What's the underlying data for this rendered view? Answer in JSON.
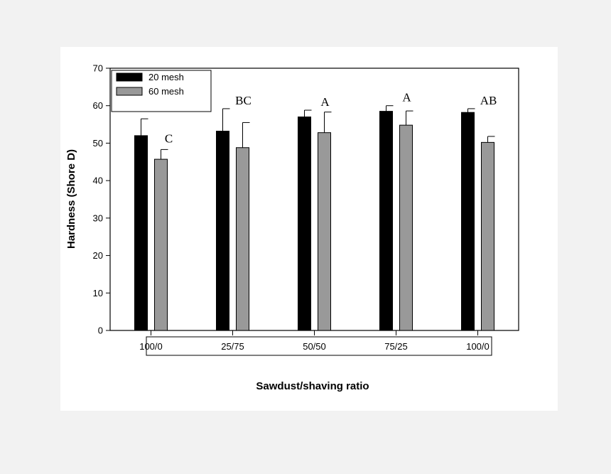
{
  "chart_data": {
    "type": "bar",
    "categories": [
      "100/0",
      "25/75",
      "50/50",
      "75/25",
      "100/0"
    ],
    "series": [
      {
        "name": "20 mesh",
        "color": "#000000",
        "values": [
          52.0,
          53.2,
          57.0,
          58.5,
          58.2
        ],
        "errors": [
          4.5,
          6.0,
          1.8,
          1.5,
          1.0
        ]
      },
      {
        "name": "60 mesh",
        "color": "#999999",
        "values": [
          45.7,
          48.8,
          52.8,
          54.8,
          50.2
        ],
        "errors": [
          2.6,
          6.7,
          5.5,
          3.8,
          1.6
        ]
      }
    ],
    "annotations": [
      "C",
      "BC",
      "A",
      "A",
      "AB"
    ],
    "xlabel": "Sawdust/shaving ratio",
    "ylabel": "Hardness (Shore D)",
    "ylim": [
      0,
      70
    ],
    "yticks": [
      0,
      10,
      20,
      30,
      40,
      50,
      60,
      70
    ],
    "grid": false,
    "legend_position": "top-left"
  }
}
